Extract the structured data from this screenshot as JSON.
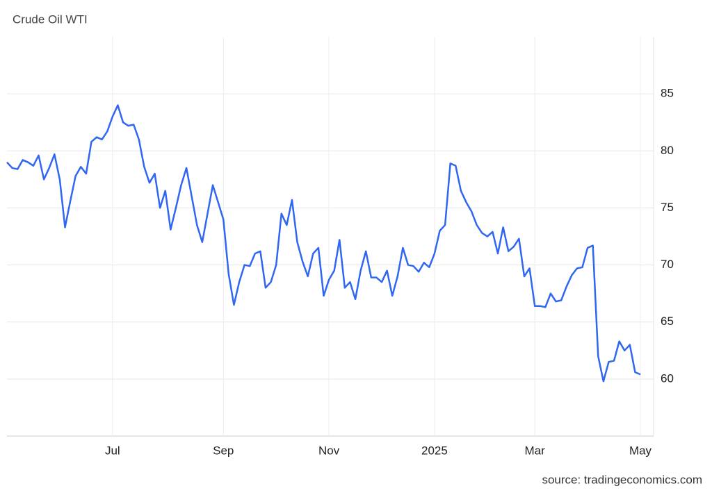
{
  "chart_data": {
    "type": "line",
    "title": "Crude Oil WTI",
    "source": "source: tradingeconomics.com",
    "categories": [
      null,
      null,
      null,
      null,
      null,
      null,
      null,
      null,
      null,
      null,
      null,
      null,
      null,
      null,
      null,
      null,
      null,
      null,
      null,
      null,
      "Jul",
      null,
      null,
      null,
      null,
      null,
      null,
      null,
      null,
      null,
      null,
      null,
      null,
      null,
      null,
      null,
      null,
      null,
      null,
      null,
      null,
      "Sep",
      null,
      null,
      null,
      null,
      null,
      null,
      null,
      null,
      null,
      null,
      null,
      null,
      null,
      null,
      null,
      null,
      null,
      null,
      null,
      "Nov",
      null,
      null,
      null,
      null,
      null,
      null,
      null,
      null,
      null,
      null,
      null,
      null,
      null,
      null,
      null,
      null,
      null,
      null,
      null,
      "2025",
      null,
      null,
      null,
      null,
      null,
      null,
      null,
      null,
      null,
      null,
      null,
      null,
      null,
      null,
      null,
      null,
      null,
      null,
      "Mar",
      null,
      null,
      null,
      null,
      null,
      null,
      null,
      null,
      null,
      null,
      null,
      null,
      null,
      null,
      null,
      null,
      null,
      null,
      null,
      "May"
    ],
    "series": [
      {
        "name": "Crude Oil WTI",
        "color": "#2f66f2",
        "values": [
          79.0,
          78.5,
          78.4,
          79.2,
          79.0,
          78.7,
          79.6,
          77.5,
          78.5,
          79.7,
          77.5,
          73.3,
          75.6,
          77.8,
          78.6,
          78.0,
          80.8,
          81.2,
          81.0,
          81.7,
          83.0,
          84.0,
          82.5,
          82.2,
          82.3,
          81.0,
          78.6,
          77.2,
          78.0,
          75.0,
          76.5,
          73.1,
          75.0,
          77.0,
          78.5,
          76.0,
          73.5,
          72.0,
          74.5,
          77.0,
          75.5,
          74.0,
          69.2,
          66.5,
          68.5,
          70.0,
          69.9,
          71.0,
          71.2,
          68.0,
          68.5,
          70.0,
          74.5,
          73.5,
          75.7,
          72.0,
          70.3,
          69.0,
          71.0,
          71.5,
          67.3,
          68.7,
          69.5,
          72.2,
          68.0,
          68.5,
          67.0,
          69.5,
          71.2,
          68.9,
          68.9,
          68.5,
          69.5,
          67.3,
          69.0,
          71.5,
          70.0,
          69.9,
          69.4,
          70.2,
          69.8,
          71.0,
          73.0,
          73.5,
          78.9,
          78.7,
          76.5,
          75.5,
          74.7,
          73.5,
          72.8,
          72.5,
          72.9,
          71.0,
          73.3,
          71.2,
          71.6,
          72.3,
          69.0,
          69.7,
          66.4,
          66.4,
          66.3,
          67.5,
          66.8,
          66.9,
          68.1,
          69.1,
          69.7,
          69.8,
          71.5,
          71.7,
          62.0,
          59.8,
          61.5,
          61.6,
          63.3,
          62.5,
          63.0,
          60.6,
          60.4
        ]
      }
    ],
    "ylim": [
      55,
      90
    ],
    "yticks": [
      60,
      65,
      70,
      75,
      80,
      85
    ],
    "grid": true
  }
}
